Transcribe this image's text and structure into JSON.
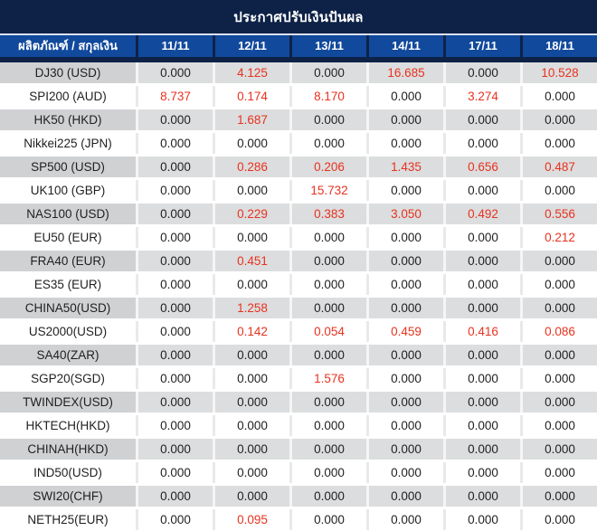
{
  "title": "ประกาศปรับเงินปันผล",
  "columns": {
    "product_header": "ผลิตภัณฑ์ / สกุลเงิน",
    "dates": [
      "11/11",
      "12/11",
      "13/11",
      "14/11",
      "17/11",
      "18/11"
    ]
  },
  "colors": {
    "title_bar_bg": "#0e2247",
    "header_cell_bg": "#11499c",
    "header_text": "#ffffff",
    "odd_row_label_bg": "#d0d1d3",
    "odd_row_value_bg": "#dcddde",
    "even_row_bg": "#ffffff",
    "zero_value_text": "#1f1f1f",
    "nonzero_value_text": "#e8321f"
  },
  "rows": [
    {
      "label": "DJ30 (USD)",
      "values": [
        "0.000",
        "4.125",
        "0.000",
        "16.685",
        "0.000",
        "10.528"
      ]
    },
    {
      "label": "SPI200 (AUD)",
      "values": [
        "8.737",
        "0.174",
        "8.170",
        "0.000",
        "3.274",
        "0.000"
      ]
    },
    {
      "label": "HK50 (HKD)",
      "values": [
        "0.000",
        "1.687",
        "0.000",
        "0.000",
        "0.000",
        "0.000"
      ]
    },
    {
      "label": "Nikkei225 (JPN)",
      "values": [
        "0.000",
        "0.000",
        "0.000",
        "0.000",
        "0.000",
        "0.000"
      ]
    },
    {
      "label": "SP500 (USD)",
      "values": [
        "0.000",
        "0.286",
        "0.206",
        "1.435",
        "0.656",
        "0.487"
      ]
    },
    {
      "label": "UK100 (GBP)",
      "values": [
        "0.000",
        "0.000",
        "15.732",
        "0.000",
        "0.000",
        "0.000"
      ]
    },
    {
      "label": "NAS100 (USD)",
      "values": [
        "0.000",
        "0.229",
        "0.383",
        "3.050",
        "0.492",
        "0.556"
      ]
    },
    {
      "label": "EU50 (EUR)",
      "values": [
        "0.000",
        "0.000",
        "0.000",
        "0.000",
        "0.000",
        "0.212"
      ]
    },
    {
      "label": "FRA40 (EUR)",
      "values": [
        "0.000",
        "0.451",
        "0.000",
        "0.000",
        "0.000",
        "0.000"
      ]
    },
    {
      "label": "ES35 (EUR)",
      "values": [
        "0.000",
        "0.000",
        "0.000",
        "0.000",
        "0.000",
        "0.000"
      ]
    },
    {
      "label": "CHINA50(USD)",
      "values": [
        "0.000",
        "1.258",
        "0.000",
        "0.000",
        "0.000",
        "0.000"
      ]
    },
    {
      "label": "US2000(USD)",
      "values": [
        "0.000",
        "0.142",
        "0.054",
        "0.459",
        "0.416",
        "0.086"
      ]
    },
    {
      "label": "SA40(ZAR)",
      "values": [
        "0.000",
        "0.000",
        "0.000",
        "0.000",
        "0.000",
        "0.000"
      ]
    },
    {
      "label": "SGP20(SGD)",
      "values": [
        "0.000",
        "0.000",
        "1.576",
        "0.000",
        "0.000",
        "0.000"
      ]
    },
    {
      "label": "TWINDEX(USD)",
      "values": [
        "0.000",
        "0.000",
        "0.000",
        "0.000",
        "0.000",
        "0.000"
      ]
    },
    {
      "label": "HKTECH(HKD)",
      "values": [
        "0.000",
        "0.000",
        "0.000",
        "0.000",
        "0.000",
        "0.000"
      ]
    },
    {
      "label": "CHINAH(HKD)",
      "values": [
        "0.000",
        "0.000",
        "0.000",
        "0.000",
        "0.000",
        "0.000"
      ]
    },
    {
      "label": "IND50(USD)",
      "values": [
        "0.000",
        "0.000",
        "0.000",
        "0.000",
        "0.000",
        "0.000"
      ]
    },
    {
      "label": "SWI20(CHF)",
      "values": [
        "0.000",
        "0.000",
        "0.000",
        "0.000",
        "0.000",
        "0.000"
      ]
    },
    {
      "label": "NETH25(EUR)",
      "values": [
        "0.000",
        "0.095",
        "0.000",
        "0.000",
        "0.000",
        "0.000"
      ]
    }
  ]
}
